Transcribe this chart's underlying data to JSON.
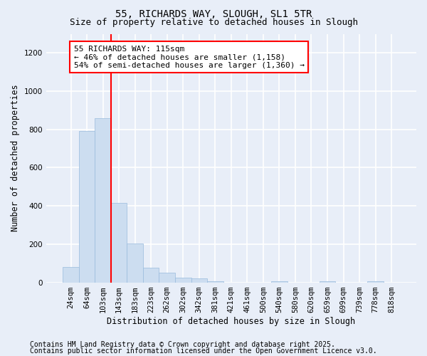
{
  "title1": "55, RICHARDS WAY, SLOUGH, SL1 5TR",
  "title2": "Size of property relative to detached houses in Slough",
  "xlabel": "Distribution of detached houses by size in Slough",
  "ylabel": "Number of detached properties",
  "categories": [
    "24sqm",
    "64sqm",
    "103sqm",
    "143sqm",
    "183sqm",
    "223sqm",
    "262sqm",
    "302sqm",
    "342sqm",
    "381sqm",
    "421sqm",
    "461sqm",
    "500sqm",
    "540sqm",
    "580sqm",
    "620sqm",
    "659sqm",
    "699sqm",
    "739sqm",
    "778sqm",
    "818sqm"
  ],
  "values": [
    80,
    790,
    860,
    415,
    205,
    75,
    50,
    25,
    20,
    5,
    0,
    0,
    0,
    5,
    0,
    0,
    5,
    0,
    0,
    5,
    0
  ],
  "bar_color": "#ccddf0",
  "bar_edgecolor": "#99bbdd",
  "vline_x": 2.5,
  "vline_color": "red",
  "annotation_text": "55 RICHARDS WAY: 115sqm\n← 46% of detached houses are smaller (1,158)\n54% of semi-detached houses are larger (1,360) →",
  "annotation_box_color": "white",
  "annotation_box_edgecolor": "red",
  "ylim": [
    0,
    1300
  ],
  "yticks": [
    0,
    200,
    400,
    600,
    800,
    1000,
    1200
  ],
  "background_color": "#e8eef8",
  "fig_background_color": "#e8eef8",
  "grid_color": "white",
  "footer1": "Contains HM Land Registry data © Crown copyright and database right 2025.",
  "footer2": "Contains public sector information licensed under the Open Government Licence v3.0.",
  "title_fontsize": 10,
  "subtitle_fontsize": 9,
  "axis_label_fontsize": 8.5,
  "tick_fontsize": 7.5,
  "annotation_fontsize": 8,
  "footer_fontsize": 7
}
